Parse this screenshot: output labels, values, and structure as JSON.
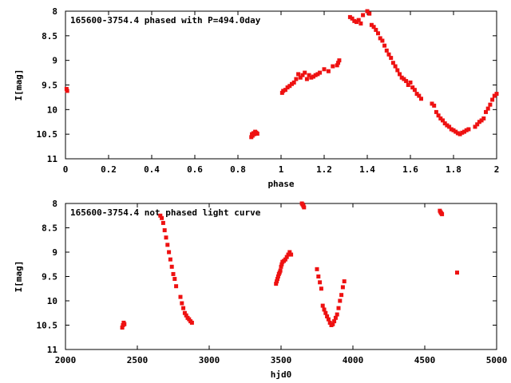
{
  "chart_data": [
    {
      "type": "scatter",
      "title": "165600-3754.4 phased with P=494.0day",
      "xlabel": "phase",
      "ylabel": "I[mag]",
      "xlim": [
        0,
        2
      ],
      "ylim": [
        8,
        11
      ],
      "y_inverted": true,
      "grid": false,
      "legend": "none",
      "x_ticks": [
        "0",
        "0.2",
        "0.4",
        "0.6",
        "0.8",
        "1",
        "1.2",
        "1.4",
        "1.6",
        "1.8",
        "2"
      ],
      "y_ticks": [
        "8",
        "8.5",
        "9",
        "9.5",
        "10",
        "10.5",
        "11"
      ],
      "point_color": "#ee1111",
      "series": [
        {
          "x": [
            0.005,
            0.008,
            0.862,
            0.865,
            0.868,
            0.872,
            0.876,
            0.88,
            0.885,
            0.89,
            1.005,
            1.01,
            1.02,
            1.03,
            1.04,
            1.05,
            1.06,
            1.07,
            1.08,
            1.09,
            1.1,
            1.11,
            1.12,
            1.13,
            1.14,
            1.15,
            1.16,
            1.17,
            1.18,
            1.2,
            1.22,
            1.24,
            1.26,
            1.265,
            1.27,
            1.32,
            1.33,
            1.34,
            1.35,
            1.36,
            1.37,
            1.38,
            1.39,
            1.4,
            1.41,
            1.42,
            1.43,
            1.44,
            1.45,
            1.46,
            1.47,
            1.48,
            1.49,
            1.5,
            1.51,
            1.52,
            1.53,
            1.54,
            1.55,
            1.56,
            1.57,
            1.58,
            1.59,
            1.6,
            1.61,
            1.62,
            1.63,
            1.64,
            1.65,
            1.7,
            1.71,
            1.72,
            1.73,
            1.74,
            1.75,
            1.76,
            1.77,
            1.78,
            1.79,
            1.8,
            1.81,
            1.82,
            1.83,
            1.84,
            1.85,
            1.86,
            1.87,
            1.9,
            1.91,
            1.92,
            1.93,
            1.94,
            1.95,
            1.96,
            1.97,
            1.98,
            1.99,
            2.0
          ],
          "y": [
            9.58,
            9.62,
            10.56,
            10.5,
            10.53,
            10.48,
            10.5,
            10.45,
            10.47,
            10.49,
            9.66,
            9.62,
            9.6,
            9.55,
            9.52,
            9.48,
            9.45,
            9.38,
            9.28,
            9.35,
            9.3,
            9.25,
            9.38,
            9.3,
            9.35,
            9.33,
            9.3,
            9.28,
            9.25,
            9.18,
            9.22,
            9.12,
            9.1,
            9.05,
            9.0,
            8.12,
            8.15,
            8.2,
            8.22,
            8.18,
            8.25,
            8.08,
            7.98,
            8.0,
            8.05,
            8.28,
            8.32,
            8.38,
            8.45,
            8.55,
            8.6,
            8.7,
            8.8,
            8.88,
            8.95,
            9.05,
            9.12,
            9.2,
            9.28,
            9.35,
            9.38,
            9.42,
            9.5,
            9.45,
            9.55,
            9.6,
            9.68,
            9.72,
            9.78,
            9.88,
            9.92,
            10.05,
            10.12,
            10.18,
            10.22,
            10.28,
            10.32,
            10.35,
            10.4,
            10.42,
            10.45,
            10.48,
            10.5,
            10.47,
            10.45,
            10.42,
            10.4,
            10.35,
            10.3,
            10.25,
            10.22,
            10.18,
            10.05,
            9.98,
            9.9,
            9.8,
            9.72,
            9.68
          ]
        }
      ]
    },
    {
      "type": "scatter",
      "title": "165600-3754.4 not phased light curve",
      "xlabel": "hjd0",
      "ylabel": "I[mag]",
      "xlim": [
        2000,
        5000
      ],
      "ylim": [
        8,
        11
      ],
      "y_inverted": true,
      "grid": false,
      "legend": "none",
      "x_ticks": [
        "2000",
        "2500",
        "3000",
        "3500",
        "4000",
        "4500",
        "5000"
      ],
      "y_ticks": [
        "8",
        "8.5",
        "9",
        "9.5",
        "10",
        "10.5",
        "11"
      ],
      "point_color": "#ee1111",
      "series": [
        {
          "x": [
            2395,
            2400,
            2405,
            2410,
            2660,
            2670,
            2680,
            2690,
            2700,
            2710,
            2720,
            2730,
            2740,
            2750,
            2760,
            2770,
            2800,
            2810,
            2820,
            2830,
            2840,
            2850,
            2860,
            2870,
            2880,
            3465,
            3470,
            3475,
            3480,
            3485,
            3490,
            3495,
            3500,
            3505,
            3510,
            3520,
            3530,
            3540,
            3550,
            3560,
            3570,
            3645,
            3650,
            3655,
            3660,
            3750,
            3760,
            3770,
            3780,
            3790,
            3800,
            3810,
            3820,
            3830,
            3840,
            3850,
            3860,
            3870,
            3880,
            3890,
            3900,
            3910,
            3920,
            3930,
            3940,
            4605,
            4610,
            4615,
            4620,
            4725
          ],
          "y": [
            10.55,
            10.5,
            10.45,
            10.48,
            8.25,
            8.3,
            8.4,
            8.55,
            8.7,
            8.85,
            9.0,
            9.15,
            9.3,
            9.45,
            9.55,
            9.7,
            9.92,
            10.05,
            10.15,
            10.25,
            10.3,
            10.35,
            10.38,
            10.42,
            10.45,
            9.65,
            9.6,
            9.55,
            9.5,
            9.45,
            9.42,
            9.38,
            9.3,
            9.25,
            9.2,
            9.18,
            9.15,
            9.1,
            9.05,
            9.0,
            9.05,
            8.0,
            8.02,
            8.05,
            8.08,
            9.35,
            9.5,
            9.62,
            9.75,
            10.1,
            10.18,
            10.25,
            10.32,
            10.38,
            10.45,
            10.5,
            10.48,
            10.42,
            10.35,
            10.28,
            10.15,
            10.0,
            9.88,
            9.72,
            9.6,
            8.15,
            8.18,
            8.2,
            8.22,
            9.42
          ]
        }
      ]
    }
  ]
}
